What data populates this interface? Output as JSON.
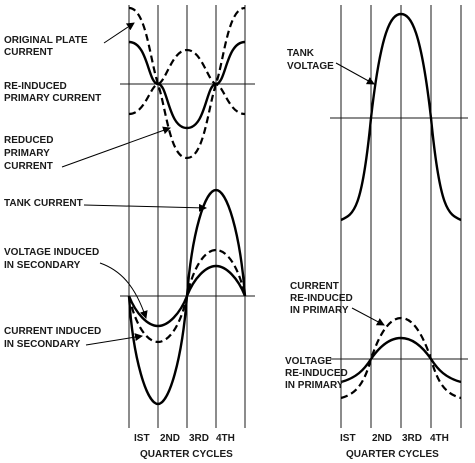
{
  "left_panel": {
    "labels": {
      "original_plate_current": [
        "ORIGINAL PLATE",
        "CURRENT"
      ],
      "reinduced_primary_current": [
        "RE-INDUCED",
        "PRIMARY CURRENT"
      ],
      "reduced_primary_current": [
        "REDUCED",
        "PRIMARY",
        "CURRENT"
      ],
      "tank_current": [
        "TANK CURRENT"
      ],
      "voltage_induced_secondary": [
        "VOLTAGE INDUCED",
        "IN SECONDARY"
      ],
      "current_induced_secondary": [
        "CURRENT INDUCED",
        "IN SECONDARY"
      ]
    },
    "axis_labels": [
      "IST",
      "2ND",
      "3RD",
      "4TH"
    ],
    "axis_title": "QUARTER CYCLES"
  },
  "right_panel": {
    "labels": {
      "tank_voltage": [
        "TANK",
        "VOLTAGE"
      ],
      "current_reinduced_primary": [
        "CURRENT",
        "RE-INDUCED",
        "IN PRIMARY"
      ],
      "voltage_reinduced_primary": [
        "VOLTAGE",
        "RE-INDUCED",
        "IN PRIMARY"
      ]
    },
    "axis_labels": [
      "IST",
      "2ND",
      "3RD",
      "4TH"
    ],
    "axis_title": "QUARTER CYCLES"
  }
}
